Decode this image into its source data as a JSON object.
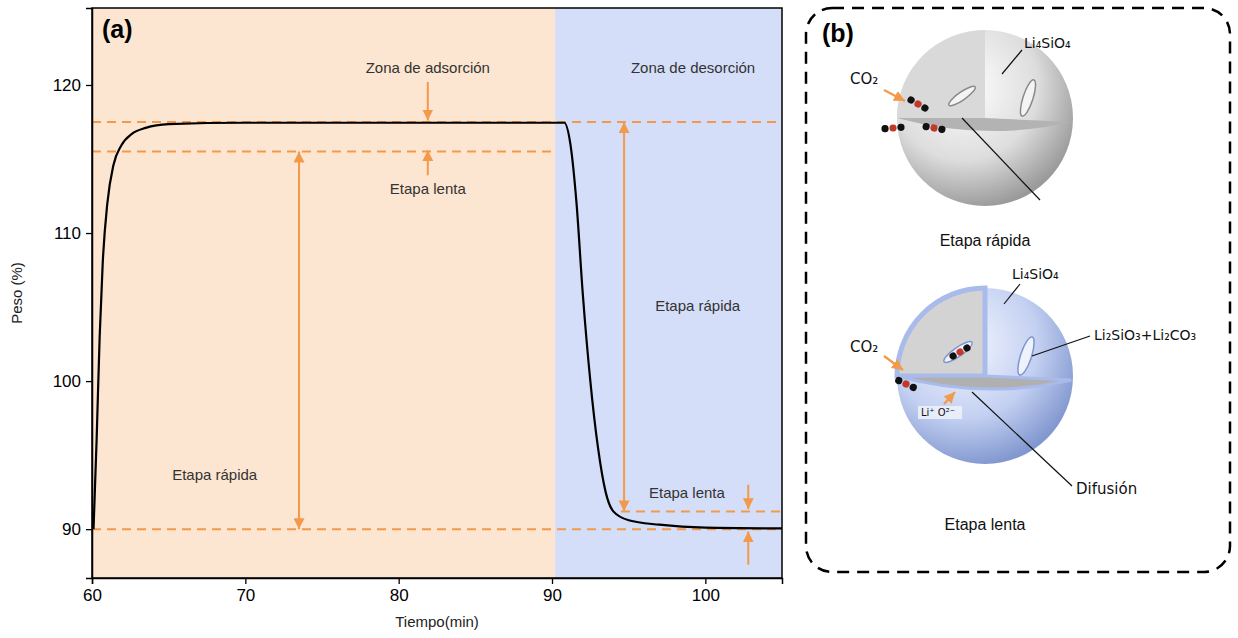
{
  "chart_data": {
    "type": "line",
    "panel_label": "(a)",
    "x_label": "Tiempo(min)",
    "y_label": "Peso (%)",
    "xlim": [
      60,
      105
    ],
    "ylim": [
      86.7,
      125.2
    ],
    "xticks": [
      60,
      70,
      80,
      90,
      100
    ],
    "yticks": [
      90,
      100,
      110,
      120
    ],
    "grid": false,
    "color": "#000000",
    "x": [
      60.1,
      60.3,
      60.5,
      60.7,
      61.0,
      61.4,
      61.9,
      62.6,
      63.5,
      65,
      70,
      80,
      90.8,
      91.2,
      91.6,
      92.0,
      92.5,
      93.0,
      93.5,
      94.0,
      95.0,
      97.0,
      100.0,
      105.0
    ],
    "values": [
      90,
      96,
      103,
      108,
      112,
      114.6,
      115.9,
      116.7,
      117.1,
      117.35,
      117.45,
      117.45,
      117.45,
      116,
      112,
      106,
      100,
      95.5,
      92.5,
      91.2,
      90.6,
      90.3,
      90.1,
      90.05
    ],
    "zones": [
      {
        "from": 60,
        "to": 90.2,
        "color": "#fce6d1"
      },
      {
        "from": 90.2,
        "to": 105,
        "color": "#d5def8"
      }
    ],
    "reference_lines": [
      {
        "y": 117.5,
        "x": [
          60,
          105
        ]
      },
      {
        "y": 115.5,
        "x": [
          60,
          90.2
        ]
      },
      {
        "y": 90,
        "x": [
          60,
          105
        ]
      },
      {
        "y": 91.2,
        "x": [
          94.5,
          105
        ]
      }
    ],
    "arrows": [
      {
        "x": 81.9,
        "from": 120.2,
        "to": 117.6
      },
      {
        "x": 81.9,
        "from": 113.9,
        "to": 115.6
      },
      {
        "x": 102.8,
        "from": 93.0,
        "to": 91.35
      },
      {
        "x": 102.8,
        "from": 87.6,
        "to": 89.85
      }
    ],
    "spans": [
      {
        "x": 73.5,
        "y": [
          90,
          115.5
        ]
      },
      {
        "x": 94.7,
        "y": [
          91.2,
          117.5
        ]
      }
    ],
    "annotations": [
      {
        "text": "Zona de adsorción",
        "x": 81.9,
        "y": 121.1
      },
      {
        "text": "Etapa lenta",
        "x": 81.9,
        "y": 112.9
      },
      {
        "text": "Etapa rápida",
        "x": 68,
        "y": 93.6
      },
      {
        "text": "Zona de desorción",
        "x": 99.2,
        "y": 121.1
      },
      {
        "text": "Etapa rápida",
        "x": 99.5,
        "y": 105
      },
      {
        "text": "Etapa lenta",
        "x": 98.8,
        "y": 92.4
      }
    ]
  },
  "diagram": {
    "panel_label": "(b)",
    "stages": [
      {
        "caption": "Etapa rápida",
        "gas": "CO₂",
        "core": "Li₄SiO₄"
      },
      {
        "caption": "Etapa lenta",
        "gas": "CO₂",
        "core": "Li₄SiO₄",
        "shell": "Li₂SiO₃+Li₂CO₃",
        "ions": "Li⁺ O²⁻",
        "process": "Difusión"
      }
    ]
  }
}
